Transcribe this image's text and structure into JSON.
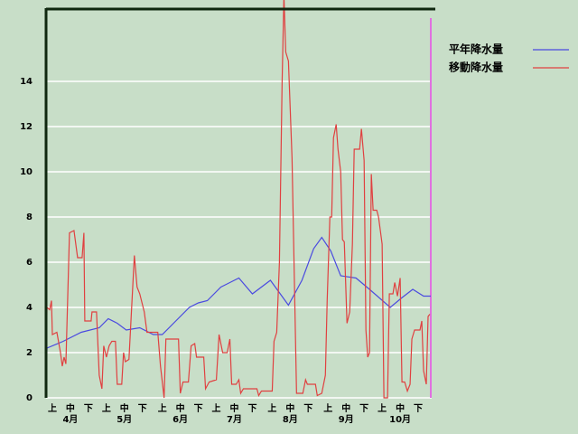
{
  "chart_data": {
    "type": "line",
    "xlim": [
      0,
      214
    ],
    "ylim": [
      0,
      17.2
    ],
    "yticks": [
      0,
      2,
      4,
      6,
      8,
      10,
      12,
      14
    ],
    "grid": true,
    "legend": "top-right",
    "xticks": [
      {
        "value": 3.5,
        "label": "上"
      },
      {
        "value": 13.5,
        "label": "中"
      },
      {
        "value": 23.5,
        "label": "下"
      },
      {
        "value": 33.5,
        "label": "上"
      },
      {
        "value": 43.5,
        "label": "中"
      },
      {
        "value": 53.5,
        "label": "下"
      },
      {
        "value": 64.5,
        "label": "上"
      },
      {
        "value": 74.5,
        "label": "中"
      },
      {
        "value": 84.5,
        "label": "下"
      },
      {
        "value": 94.5,
        "label": "上"
      },
      {
        "value": 104.5,
        "label": "中"
      },
      {
        "value": 114.5,
        "label": "下"
      },
      {
        "value": 125.5,
        "label": "上"
      },
      {
        "value": 135.5,
        "label": "中"
      },
      {
        "value": 145.5,
        "label": "下"
      },
      {
        "value": 156.5,
        "label": "上"
      },
      {
        "value": 166.5,
        "label": "中"
      },
      {
        "value": 176.5,
        "label": "下"
      },
      {
        "value": 186.5,
        "label": "上"
      },
      {
        "value": 196.5,
        "label": "中"
      },
      {
        "value": 206.5,
        "label": "下"
      }
    ],
    "month_labels": [
      {
        "value": 13.5,
        "label": "4月"
      },
      {
        "value": 43.5,
        "label": "5月"
      },
      {
        "value": 74.5,
        "label": "6月"
      },
      {
        "value": 104.5,
        "label": "7月"
      },
      {
        "value": 135.5,
        "label": "8月"
      },
      {
        "value": 166.5,
        "label": "9月"
      },
      {
        "value": 196.5,
        "label": "10月"
      }
    ],
    "series": [
      {
        "name": "平年降水量",
        "color": "#4a4ae0",
        "x": [
          0,
          0.5,
          9.5,
          19.5,
          29.5,
          34.5,
          39.5,
          44.5,
          52,
          59.5,
          64.5,
          72,
          79.5,
          84.5,
          89.5,
          97,
          107,
          114.5,
          124.5,
          134.5,
          142,
          148.5,
          153,
          158,
          163.5,
          172,
          179.5,
          191,
          197,
          203.5,
          209.5,
          213.5
        ],
        "values": [
          0,
          2.2,
          2.5,
          2.9,
          3.1,
          3.5,
          3.3,
          3.0,
          3.1,
          2.8,
          2.8,
          3.4,
          4.0,
          4.2,
          4.3,
          4.9,
          5.3,
          4.6,
          5.2,
          4.1,
          5.2,
          6.6,
          7.1,
          6.5,
          5.4,
          5.3,
          4.8,
          4.0,
          4.4,
          4.8,
          4.5,
          4.5
        ]
      },
      {
        "name": "移動降水量",
        "color": "#e04040",
        "x": [
          0,
          0.5,
          2,
          3,
          3.5,
          6,
          8,
          9,
          10,
          11,
          13,
          15.5,
          17.5,
          20,
          21,
          21.5,
          25,
          25.5,
          28,
          29.5,
          31,
          32,
          33.5,
          35,
          36.5,
          38.5,
          39.5,
          42,
          43,
          44,
          46,
          49,
          50.5,
          52,
          54.5,
          56,
          62,
          63.5,
          65.5,
          66.5,
          73.5,
          74.5,
          76,
          79,
          80.5,
          82.5,
          83.5,
          87.5,
          88.5,
          90.5,
          94.5,
          96,
          98,
          100.5,
          102,
          103,
          105.5,
          107,
          108,
          109.5,
          117,
          118,
          119.5,
          125.5,
          126.5,
          128,
          129.5,
          131,
          132,
          133,
          134.5,
          136.5,
          139,
          142.5,
          144,
          145,
          149.5,
          150.5,
          153,
          155,
          156,
          157.5,
          158.5,
          159.5,
          161,
          162,
          163.5,
          164.5,
          165.5,
          167,
          168.5,
          170,
          171,
          174,
          175,
          176.5,
          177.5,
          178.5,
          179.5,
          180.5,
          181.5,
          183.5,
          184.5,
          186.5,
          187.5,
          189.5,
          190.5,
          192.5,
          193.5,
          195,
          196.5,
          197.5,
          199,
          200.5,
          202,
          203,
          204.5,
          207.5,
          208.5,
          209.5,
          211,
          212,
          213
        ],
        "values": [
          0,
          4.0,
          3.9,
          4.3,
          2.8,
          2.9,
          2.0,
          1.4,
          1.8,
          1.5,
          7.3,
          7.4,
          6.2,
          6.2,
          7.3,
          3.4,
          3.4,
          3.8,
          3.8,
          1.0,
          0.4,
          2.3,
          1.8,
          2.3,
          2.5,
          2.5,
          0.6,
          0.6,
          2.0,
          1.6,
          1.7,
          6.3,
          4.9,
          4.6,
          3.8,
          2.9,
          2.9,
          1.4,
          0,
          2.6,
          2.6,
          0.2,
          0.7,
          0.7,
          2.3,
          2.4,
          1.8,
          1.8,
          0.4,
          0.7,
          0.8,
          2.8,
          2.0,
          2.0,
          2.6,
          0.6,
          0.6,
          0.8,
          0.2,
          0.4,
          0.4,
          0.1,
          0.3,
          0.3,
          2.5,
          2.9,
          6.0,
          14.0,
          17.8,
          15.3,
          14.9,
          10.6,
          0.2,
          0.2,
          0.8,
          0.6,
          0.6,
          0.1,
          0.2,
          1.0,
          4.3,
          8.0,
          8.0,
          11.5,
          12.1,
          11.0,
          10.0,
          7.0,
          6.9,
          3.3,
          3.8,
          6.8,
          11.0,
          11.0,
          11.9,
          10.5,
          3.0,
          1.8,
          2.0,
          9.9,
          8.3,
          8.3,
          8.0,
          6.8,
          0,
          0,
          4.6,
          4.6,
          5.1,
          4.5,
          5.3,
          0.7,
          0.7,
          0.3,
          0.6,
          2.6,
          3.0,
          3.0,
          3.4,
          1.2,
          0.6,
          3.6,
          3.7
        ]
      }
    ]
  }
}
